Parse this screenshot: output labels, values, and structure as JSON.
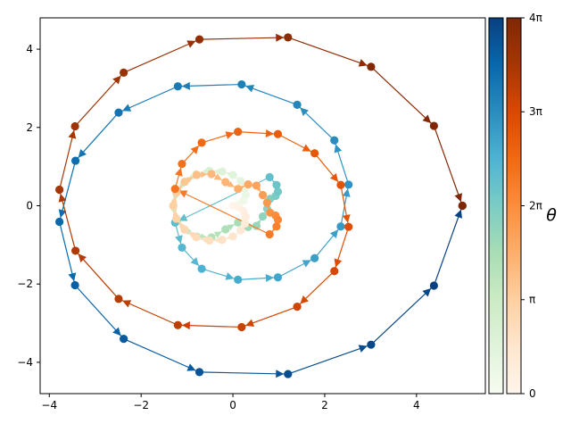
{
  "chart_data": {
    "type": "line",
    "title": "",
    "xlabel": "",
    "ylabel": "",
    "xlim": [
      -4.2,
      5.5
    ],
    "ylim": [
      -4.8,
      4.8
    ],
    "xticks": [
      -4,
      -2,
      0,
      2,
      4
    ],
    "yticks": [
      -4,
      -2,
      0,
      2,
      4
    ],
    "xtick_labels": [
      "−4",
      "−2",
      "0",
      "2",
      "4"
    ],
    "ytick_labels": [
      "−4",
      "−2",
      "0",
      "2",
      "4"
    ],
    "grid": false,
    "theta_range": [
      0,
      12.566
    ],
    "step": 0.2618,
    "series": [
      {
        "color_scale": "GnBu",
        "points": [
          [
            0,
            0
          ],
          [
            0.127,
            0.034
          ],
          [
            0.227,
            0.131
          ],
          [
            0.278,
            0.278
          ],
          [
            0.262,
            0.454
          ],
          [
            0.169,
            0.631
          ],
          [
            0,
            0.785
          ],
          [
            -0.234,
            0.873
          ],
          [
            -0.513,
            0.889
          ],
          [
            -0.8,
            0.8
          ],
          [
            -1.054,
            0.609
          ],
          [
            -1.234,
            0.331
          ],
          [
            -1.3,
            0
          ],
          [
            -1.23,
            -0.343
          ],
          [
            -1.053,
            -0.608
          ],
          [
            -0.788,
            -0.788
          ],
          [
            -0.467,
            -0.809
          ],
          [
            -0.162,
            -0.604
          ],
          [
            0.113,
            -0.429
          ],
          [
            0.332,
            -0.545
          ],
          [
            0.512,
            -0.515
          ],
          [
            0.651,
            -0.273
          ],
          [
            0.745,
            -0.077
          ],
          [
            0.811,
            0.178
          ],
          [
            0.93,
            0.25
          ],
          [
            0.98,
            0.36
          ],
          [
            0.95,
            0.53
          ],
          [
            0.8,
            0.73
          ],
          [
            -1.26,
            -0.43
          ],
          [
            -1.11,
            -1.07
          ],
          [
            -0.68,
            -1.61
          ],
          [
            0.11,
            -1.89
          ],
          [
            0.98,
            -1.83
          ],
          [
            1.78,
            -1.34
          ],
          [
            2.35,
            -0.53
          ],
          [
            2.52,
            0.54
          ],
          [
            2.21,
            1.67
          ],
          [
            1.4,
            2.58
          ],
          [
            0.19,
            3.1
          ],
          [
            -1.2,
            3.05
          ],
          [
            -2.49,
            2.38
          ],
          [
            -3.43,
            1.15
          ],
          [
            -3.78,
            -0.41
          ],
          [
            -3.44,
            -2.03
          ],
          [
            -2.38,
            -3.4
          ],
          [
            -0.73,
            -4.25
          ],
          [
            1.2,
            -4.3
          ],
          [
            3.01,
            -3.55
          ],
          [
            4.38,
            -2.04
          ],
          [
            5.0,
            0.0
          ]
        ]
      },
      {
        "color_scale": "Oranges",
        "points": [
          [
            0,
            0
          ],
          [
            0.127,
            -0.034
          ],
          [
            0.227,
            -0.131
          ],
          [
            0.278,
            -0.278
          ],
          [
            0.262,
            -0.454
          ],
          [
            0.169,
            -0.631
          ],
          [
            0,
            -0.785
          ],
          [
            -0.234,
            -0.873
          ],
          [
            -0.513,
            -0.889
          ],
          [
            -0.8,
            -0.8
          ],
          [
            -1.054,
            -0.609
          ],
          [
            -1.234,
            -0.331
          ],
          [
            -1.3,
            0
          ],
          [
            -1.23,
            0.343
          ],
          [
            -1.053,
            0.608
          ],
          [
            -0.788,
            0.788
          ],
          [
            -0.467,
            0.809
          ],
          [
            -0.162,
            0.604
          ],
          [
            0.113,
            0.429
          ],
          [
            0.332,
            0.545
          ],
          [
            0.512,
            0.515
          ],
          [
            0.651,
            0.273
          ],
          [
            0.745,
            0.077
          ],
          [
            0.811,
            -0.178
          ],
          [
            0.93,
            -0.25
          ],
          [
            0.98,
            -0.36
          ],
          [
            0.95,
            -0.53
          ],
          [
            0.8,
            -0.73
          ],
          [
            -1.26,
            0.43
          ],
          [
            -1.11,
            1.07
          ],
          [
            -0.68,
            1.61
          ],
          [
            0.11,
            1.89
          ],
          [
            0.98,
            1.83
          ],
          [
            1.78,
            1.34
          ],
          [
            2.35,
            0.53
          ],
          [
            2.52,
            -0.54
          ],
          [
            2.21,
            -1.67
          ],
          [
            1.4,
            -2.58
          ],
          [
            0.19,
            -3.1
          ],
          [
            -1.2,
            -3.05
          ],
          [
            -2.49,
            -2.38
          ],
          [
            -3.43,
            -1.15
          ],
          [
            -3.78,
            0.41
          ],
          [
            -3.44,
            2.03
          ],
          [
            -2.38,
            3.4
          ],
          [
            -0.73,
            4.25
          ],
          [
            1.2,
            4.3
          ],
          [
            3.01,
            3.55
          ],
          [
            4.38,
            2.04
          ],
          [
            5.0,
            0.0
          ]
        ]
      }
    ],
    "colorbar": {
      "label": "θ",
      "ticks": [
        0,
        3.1416,
        6.2832,
        9.4248,
        12.566
      ],
      "tick_labels": [
        "0",
        "π",
        "2π",
        "3π",
        "4π"
      ]
    }
  }
}
